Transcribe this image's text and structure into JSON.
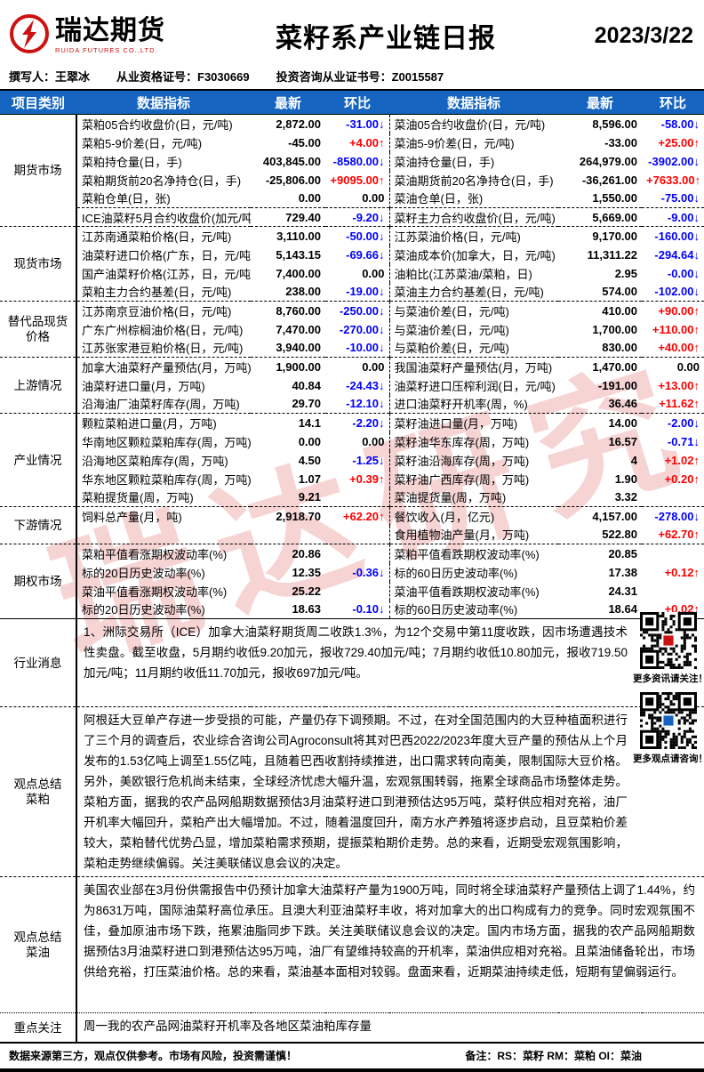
{
  "header": {
    "logo_cn": "瑞达期货",
    "logo_en": "RUIDA FUTURES CO.,LTD.",
    "title": "菜籽系产业链日报",
    "date": "2023/3/22",
    "author": "撰写人：王翠冰",
    "cert": "从业资格证号：F3030669",
    "advisor": "投资咨询从业证书号：Z0015587"
  },
  "table": {
    "headers": [
      "项目类别",
      "数据指标",
      "最新",
      "环比",
      "数据指标",
      "最新",
      "环比"
    ],
    "sections": [
      {
        "category": "期货市场",
        "rows": [
          [
            "菜粕05合约收盘价(日，元/吨)",
            "2,872.00",
            "-31.00↓",
            "菜油05合约收盘价(日，元/吨)",
            "8,596.00",
            "-58.00↓"
          ],
          [
            "菜粕5-9价差(日，元/吨)",
            "-45.00",
            "+4.00↑",
            "菜油5-9价差(日，元/吨)",
            "-33.00",
            "+25.00↑"
          ],
          [
            "菜粕持仓量(日，手)",
            "403,845.00",
            "-8580.00↓",
            "菜油持仓量(日，手)",
            "264,979.00",
            "-3902.00↓"
          ],
          [
            "菜粕期货前20名净持仓(日，手)",
            "-25,806.00",
            "+9095.00↑",
            "菜油期货前20名净持仓(日，手)",
            "-36,261.00",
            "+7633.00↑"
          ],
          [
            "菜粕仓单(日，张)",
            "0.00",
            "0.00",
            "菜油仓单(日，张)",
            "1,550.00",
            "-75.00↓"
          ],
          [
            "ICE油菜籽5月合约收盘价(加元/吨)",
            "729.40",
            "-9.20↓",
            "菜籽主力合约收盘价(日，元/吨)",
            "5,669.00",
            "-9.00↓"
          ]
        ]
      },
      {
        "category": "现货市场",
        "rows": [
          [
            "江苏南通菜粕价格(日，元/吨)",
            "3,110.00",
            "-50.00↓",
            "江苏菜油价格(日，元/吨)",
            "9,170.00",
            "-160.00↓"
          ],
          [
            "油菜籽进口价格(广东，日，元/吨)",
            "5,143.15",
            "-69.66↓",
            "菜油成本价(加拿大，日，元/吨)",
            "11,311.22",
            "-294.64↓"
          ],
          [
            "国产油菜籽价格(江苏，日，元/吨)",
            "7,400.00",
            "0.00",
            "油粕比(江苏菜油/菜粕，日)",
            "2.95",
            "-0.00↓"
          ],
          [
            "菜粕主力合约基差(日，元/吨)",
            "238.00",
            "-19.00↓",
            "菜油主力合约基差(日，元/吨)",
            "574.00",
            "-102.00↓"
          ]
        ]
      },
      {
        "category": "替代品现货\n价格",
        "rows": [
          [
            "江苏南京豆油价格(日，元/吨)",
            "8,760.00",
            "-250.00↓",
            "与菜油价差(日，元/吨)",
            "410.00",
            "+90.00↑"
          ],
          [
            "广东广州棕榈油价格(日，元/吨)",
            "7,470.00",
            "-270.00↓",
            "与菜油价差(日，元/吨)",
            "1,700.00",
            "+110.00↑"
          ],
          [
            "江苏张家港豆粕价格(日，元/吨)",
            "3,940.00",
            "-10.00↓",
            "与菜粕价差(日，元/吨)",
            "830.00",
            "+40.00↑"
          ]
        ]
      },
      {
        "category": "上游情况",
        "rows": [
          [
            "加拿大油菜籽产量预估(月，万吨)",
            "1,900.00",
            "0.00",
            "我国油菜籽产量预估(月，万吨)",
            "1,470.00",
            "0.00"
          ],
          [
            "油菜籽进口量(月，万吨)",
            "40.84",
            "-24.43↓",
            "油菜籽进口压榨利润(日，元/吨)",
            "-191.00",
            "+13.00↑"
          ],
          [
            "沿海油厂油菜籽库存(周，万吨)",
            "29.70",
            "-12.10↓",
            "进口油菜籽开机率(周，%)",
            "36.46",
            "+11.62↑"
          ]
        ]
      },
      {
        "category": "产业情况",
        "rows": [
          [
            "颗粒菜粕进口量(月，万吨)",
            "14.1",
            "-2.20↓",
            "菜籽油进口量(月，万吨)",
            "14.00",
            "-2.00↓"
          ],
          [
            "华南地区颗粒菜粕库存(周，万吨)",
            "0.00",
            "0.00",
            "菜籽油华东库存(周，万吨)",
            "16.57",
            "-0.71↓"
          ],
          [
            "沿海地区菜粕库存(周，万吨)",
            "4.50",
            "-1.25↓",
            "菜籽油沿海库存(周，万吨)",
            "4",
            "+1.02↑"
          ],
          [
            "华东地区颗粒菜粕库存(周，万吨)",
            "1.07",
            "+0.39↑",
            "菜籽油广西库存(周，万吨)",
            "1.90",
            "+0.20↑"
          ],
          [
            "菜粕提货量(周，万吨)",
            "9.21",
            "",
            "菜油提货量(周，万吨)",
            "3.32",
            ""
          ]
        ]
      },
      {
        "category": "下游情况",
        "rows": [
          [
            "饲料总产量(月，吨)",
            "2,918.70",
            "+62.20↑",
            "餐饮收入(月，亿元)",
            "4,157.00",
            "-278.00↓"
          ],
          [
            "",
            "",
            "",
            "食用植物油产量(月，万吨)",
            "522.80",
            "+62.70↑"
          ]
        ]
      },
      {
        "category": "期权市场",
        "rows": [
          [
            "菜粕平值看涨期权波动率(%)",
            "20.86",
            "",
            "菜粕平值看跌期权波动率(%)",
            "20.85",
            ""
          ],
          [
            "标的20日历史波动率(%)",
            "12.35",
            "-0.36↓",
            "标的60日历史波动率(%)",
            "17.38",
            "+0.12↑"
          ],
          [
            "菜油平值看涨期权波动率(%)",
            "25.22",
            "",
            "菜油平值看跌期权波动率(%)",
            "24.31",
            ""
          ],
          [
            "标的20日历史波动率(%)",
            "18.63",
            "-0.10↓",
            "标的60日历史波动率(%)",
            "18.64",
            "+0.02↑"
          ]
        ]
      }
    ],
    "text_sections": [
      {
        "category": "行业消息",
        "text": "1、洲际交易所（ICE）加拿大油菜籽期货周二收跌1.3%，为12个交易中第11度收跌，因市场遭遇技术性卖盘。截至收盘，5月期约收低9.20加元，报收729.40加元/吨；7月期约收低10.80加元，报收719.50加元/吨；11月期约收低11.70加元，报收697加元/吨。"
      },
      {
        "category": "观点总结\n菜粕",
        "text": "阿根廷大豆单产存进一步受损的可能，产量仍存下调预期。不过，在对全国范围内的大豆种植面积进行了三个月的调查后，农业综合咨询公司Agroconsult将其对巴西2022/2023年度大豆产量的预估从上个月发布的1.53亿吨上调至1.55亿吨，且随着巴西收割持续推进，出口需求转向南美，限制国际大豆价格。另外，美欧银行危机尚未结束，全球经济忧虑大幅升温，宏观氛围转弱，拖累全球商品市场整体走势。菜粕方面，据我的农产品网船期数据预估3月油菜籽进口到港预估达95万吨，菜籽供应相对充裕，油厂开机率大幅回升，菜粕产出大幅增加。不过，随着温度回升，南方水产养殖将逐步启动，且豆菜粕价差较大，菜粕替代优势凸显，增加菜粕需求预期，提振菜粕期价走势。总的来看，近期受宏观氛围影响，菜粕走势继续偏弱。关注美联储议息会议的决定。"
      },
      {
        "category": "观点总结\n菜油",
        "text": "美国农业部在3月份供需报告中仍预计加拿大油菜籽产量为1900万吨，同时将全球油菜籽产量预估上调了1.44%，约为8631万吨，国际油菜籽高位承压。且澳大利亚油菜籽丰收，将对加拿大的出口构成有力的竞争。同时宏观氛围不佳，叠加原油市场下跌，拖累油脂同步下跌。关注美联储议息会议的决定。国内市场方面，据我的农产品网船期数据预估3月油菜籽进口到港预估达95万吨，油厂有望维持较高的开机率，菜油供应相对充裕。且菜油储备轮出，市场供给充裕，打压菜油价格。总的来看，菜油基本面相对较弱。盘面来看，近期菜油持续走低，短期有望偏弱运行。"
      },
      {
        "category": "重点关注",
        "text": "周一我的农产品网油菜籽开机率及各地区菜油粕库存量"
      }
    ]
  },
  "qr": {
    "captions": [
      "更多资讯请关注！",
      "更多观点请咨询！"
    ]
  },
  "watermark": "瑞达研究",
  "footer": {
    "disclaimer": "数据来源第三方，观点仅供参考。市场有风险，投资需谨慎！",
    "note": "备注：RS：菜籽  RM：菜粕  OI：菜油"
  }
}
